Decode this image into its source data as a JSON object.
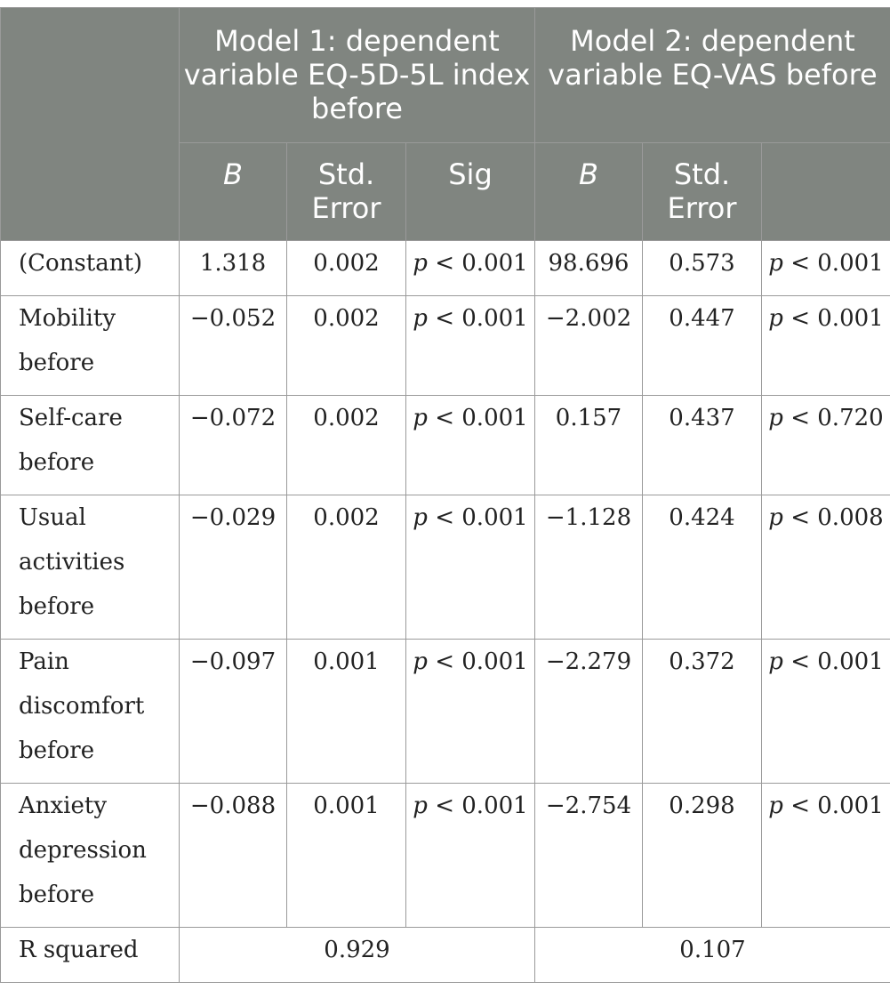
{
  "header": {
    "model1": "Model 1: dependent variable EQ-5D-5L index before",
    "model2": "Model 2: dependent variable EQ-VAS before",
    "cols": {
      "b1": "B",
      "se1": "Std. Error",
      "sig1": "Sig",
      "b2": "B",
      "se2": "Std. Error",
      "sig2": ""
    }
  },
  "rows": [
    {
      "label": "(Constant)",
      "b1": "1.318",
      "se1": "0.002",
      "sig1": "p < 0.001",
      "b2": "98.696",
      "se2": "0.573",
      "sig2": "p < 0.001"
    },
    {
      "label": "Mobility before",
      "b1": "−0.052",
      "se1": "0.002",
      "sig1": "p < 0.001",
      "b2": "−2.002",
      "se2": "0.447",
      "sig2": "p < 0.001"
    },
    {
      "label": "Self-care before",
      "b1": "−0.072",
      "se1": "0.002",
      "sig1": "p < 0.001",
      "b2": "0.157",
      "se2": "0.437",
      "sig2": "p < 0.720"
    },
    {
      "label": "Usual activities before",
      "b1": "−0.029",
      "se1": "0.002",
      "sig1": "p < 0.001",
      "b2": "−1.128",
      "se2": "0.424",
      "sig2": "p < 0.008"
    },
    {
      "label": "Pain discomfort before",
      "b1": "−0.097",
      "se1": "0.001",
      "sig1": "p < 0.001",
      "b2": "−2.279",
      "se2": "0.372",
      "sig2": "p < 0.001"
    },
    {
      "label": "Anxiety depression before",
      "b1": "−0.088",
      "se1": "0.001",
      "sig1": "p < 0.001",
      "b2": "−2.754",
      "se2": "0.298",
      "sig2": "p < 0.001"
    }
  ],
  "rsquared": {
    "label": "R squared",
    "model1": "0.929",
    "model2": "0.107"
  },
  "colors": {
    "header_bg": "#808580",
    "header_text": "#ffffff",
    "border": "#9a9a9a"
  }
}
